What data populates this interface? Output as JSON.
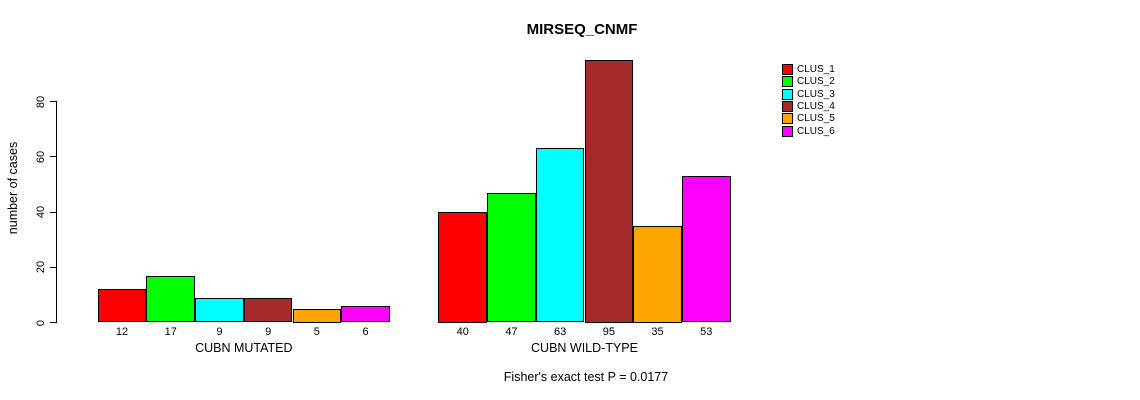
{
  "chart_data": {
    "type": "bar",
    "title": "MIRSEQ_CNMF",
    "ylabel": "number of cases",
    "xlabel": "",
    "categories": [
      "CUBN MUTATED",
      "CUBN WILD-TYPE"
    ],
    "series": [
      {
        "name": "CLUS_1",
        "color": "#FF0000",
        "values": [
          12,
          40
        ]
      },
      {
        "name": "CLUS_2",
        "color": "#00FF00",
        "values": [
          17,
          47
        ]
      },
      {
        "name": "CLUS_3",
        "color": "#00FFFF",
        "values": [
          9,
          63
        ]
      },
      {
        "name": "CLUS_4",
        "color": "#A52A2A",
        "values": [
          9,
          95
        ]
      },
      {
        "name": "CLUS_5",
        "color": "#FFA500",
        "values": [
          5,
          35
        ]
      },
      {
        "name": "CLUS_6",
        "color": "#FF00FF",
        "values": [
          6,
          53
        ]
      }
    ],
    "yticks": [
      0,
      20,
      40,
      60,
      80
    ],
    "ylim": [
      0,
      95
    ],
    "grid": false,
    "show_bar_values": true,
    "legend_position": "top-right",
    "legend": [
      "CLUS_1",
      "CLUS_2",
      "CLUS_3",
      "CLUS_4",
      "CLUS_5",
      "CLUS_6"
    ],
    "annotation": "Fisher's exact test P = 0.0177"
  }
}
